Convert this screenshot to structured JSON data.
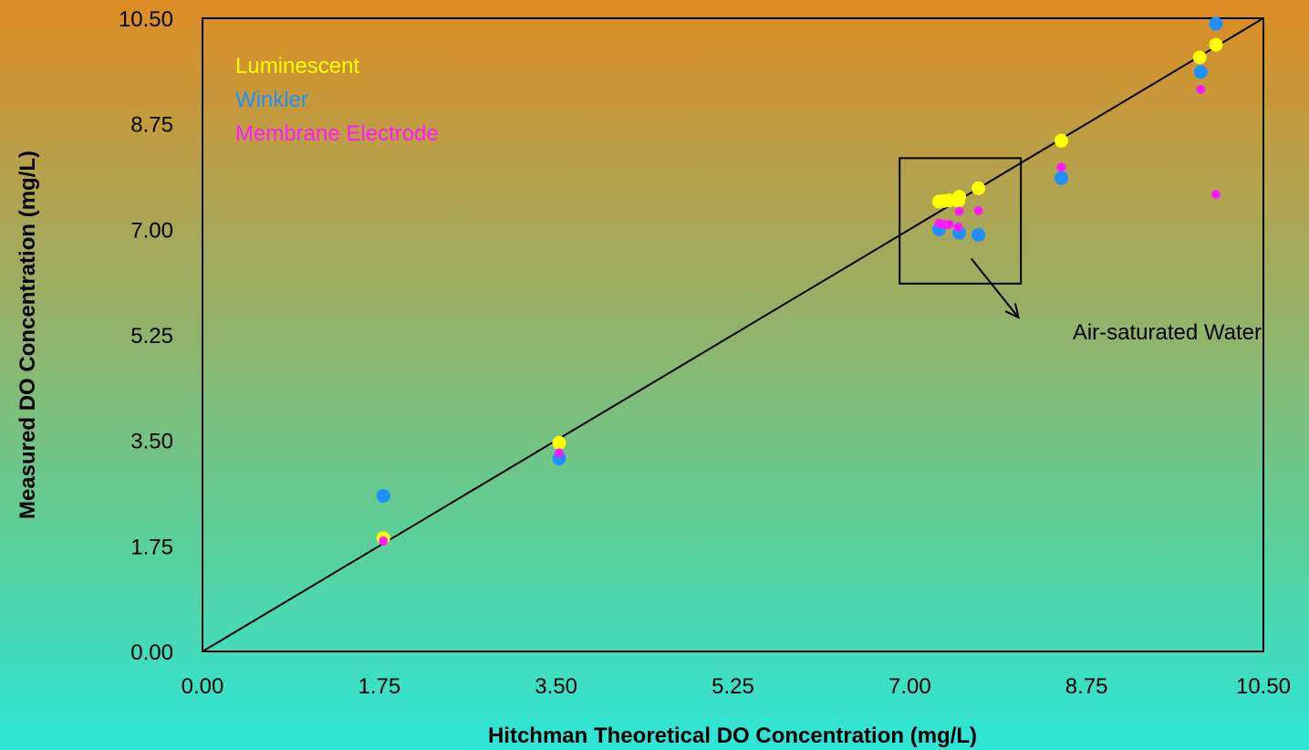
{
  "chart_data": {
    "type": "scatter",
    "xlabel": "Hitchman Theoretical DO Concentration (mg/L)",
    "ylabel": "Measured DO Concentration (mg/L)",
    "xlim": [
      0,
      10.5
    ],
    "ylim": [
      0,
      10.5
    ],
    "xticks": [
      "0.00",
      "1.75",
      "3.50",
      "5.25",
      "7.00",
      "8.75",
      "10.50"
    ],
    "yticks": [
      "0.00",
      "1.75",
      "3.50",
      "5.25",
      "7.00",
      "8.75",
      "10.50"
    ],
    "grid": false,
    "legend_position": "top-left",
    "reference_line": {
      "x": [
        0,
        10.5
      ],
      "y": [
        0,
        10.5
      ],
      "color": "#000000"
    },
    "series": [
      {
        "name": "Luminescent",
        "color": "#ffff00",
        "points": [
          {
            "x": 1.79,
            "y": 1.88
          },
          {
            "x": 3.53,
            "y": 3.46
          },
          {
            "x": 7.29,
            "y": 7.46
          },
          {
            "x": 7.34,
            "y": 7.47
          },
          {
            "x": 7.39,
            "y": 7.48
          },
          {
            "x": 7.48,
            "y": 7.47
          },
          {
            "x": 7.49,
            "y": 7.54
          },
          {
            "x": 7.68,
            "y": 7.68
          },
          {
            "x": 8.5,
            "y": 8.47
          },
          {
            "x": 9.87,
            "y": 9.85
          },
          {
            "x": 10.03,
            "y": 10.06
          }
        ]
      },
      {
        "name": "Winkler",
        "color": "#1e90ff",
        "points": [
          {
            "x": 1.79,
            "y": 2.58
          },
          {
            "x": 3.53,
            "y": 3.2
          },
          {
            "x": 7.29,
            "y": 7.0
          },
          {
            "x": 7.49,
            "y": 6.94
          },
          {
            "x": 7.68,
            "y": 6.91
          },
          {
            "x": 8.5,
            "y": 7.85
          },
          {
            "x": 9.88,
            "y": 9.61
          },
          {
            "x": 10.03,
            "y": 10.41
          }
        ]
      },
      {
        "name": "Membrane Electrode",
        "color": "#ff1aff",
        "points": [
          {
            "x": 1.79,
            "y": 1.83
          },
          {
            "x": 3.53,
            "y": 3.29
          },
          {
            "x": 7.29,
            "y": 7.1
          },
          {
            "x": 7.34,
            "y": 7.08
          },
          {
            "x": 7.39,
            "y": 7.08
          },
          {
            "x": 7.48,
            "y": 7.04
          },
          {
            "x": 7.49,
            "y": 7.3
          },
          {
            "x": 7.68,
            "y": 7.31
          },
          {
            "x": 8.5,
            "y": 8.03
          },
          {
            "x": 9.88,
            "y": 9.32
          },
          {
            "x": 10.03,
            "y": 7.58
          }
        ]
      }
    ],
    "annotations": [
      {
        "text": "Air-saturated Water",
        "box": {
          "x0": 6.9,
          "x1": 8.1,
          "y0": 6.1,
          "y1": 8.18
        }
      }
    ]
  }
}
